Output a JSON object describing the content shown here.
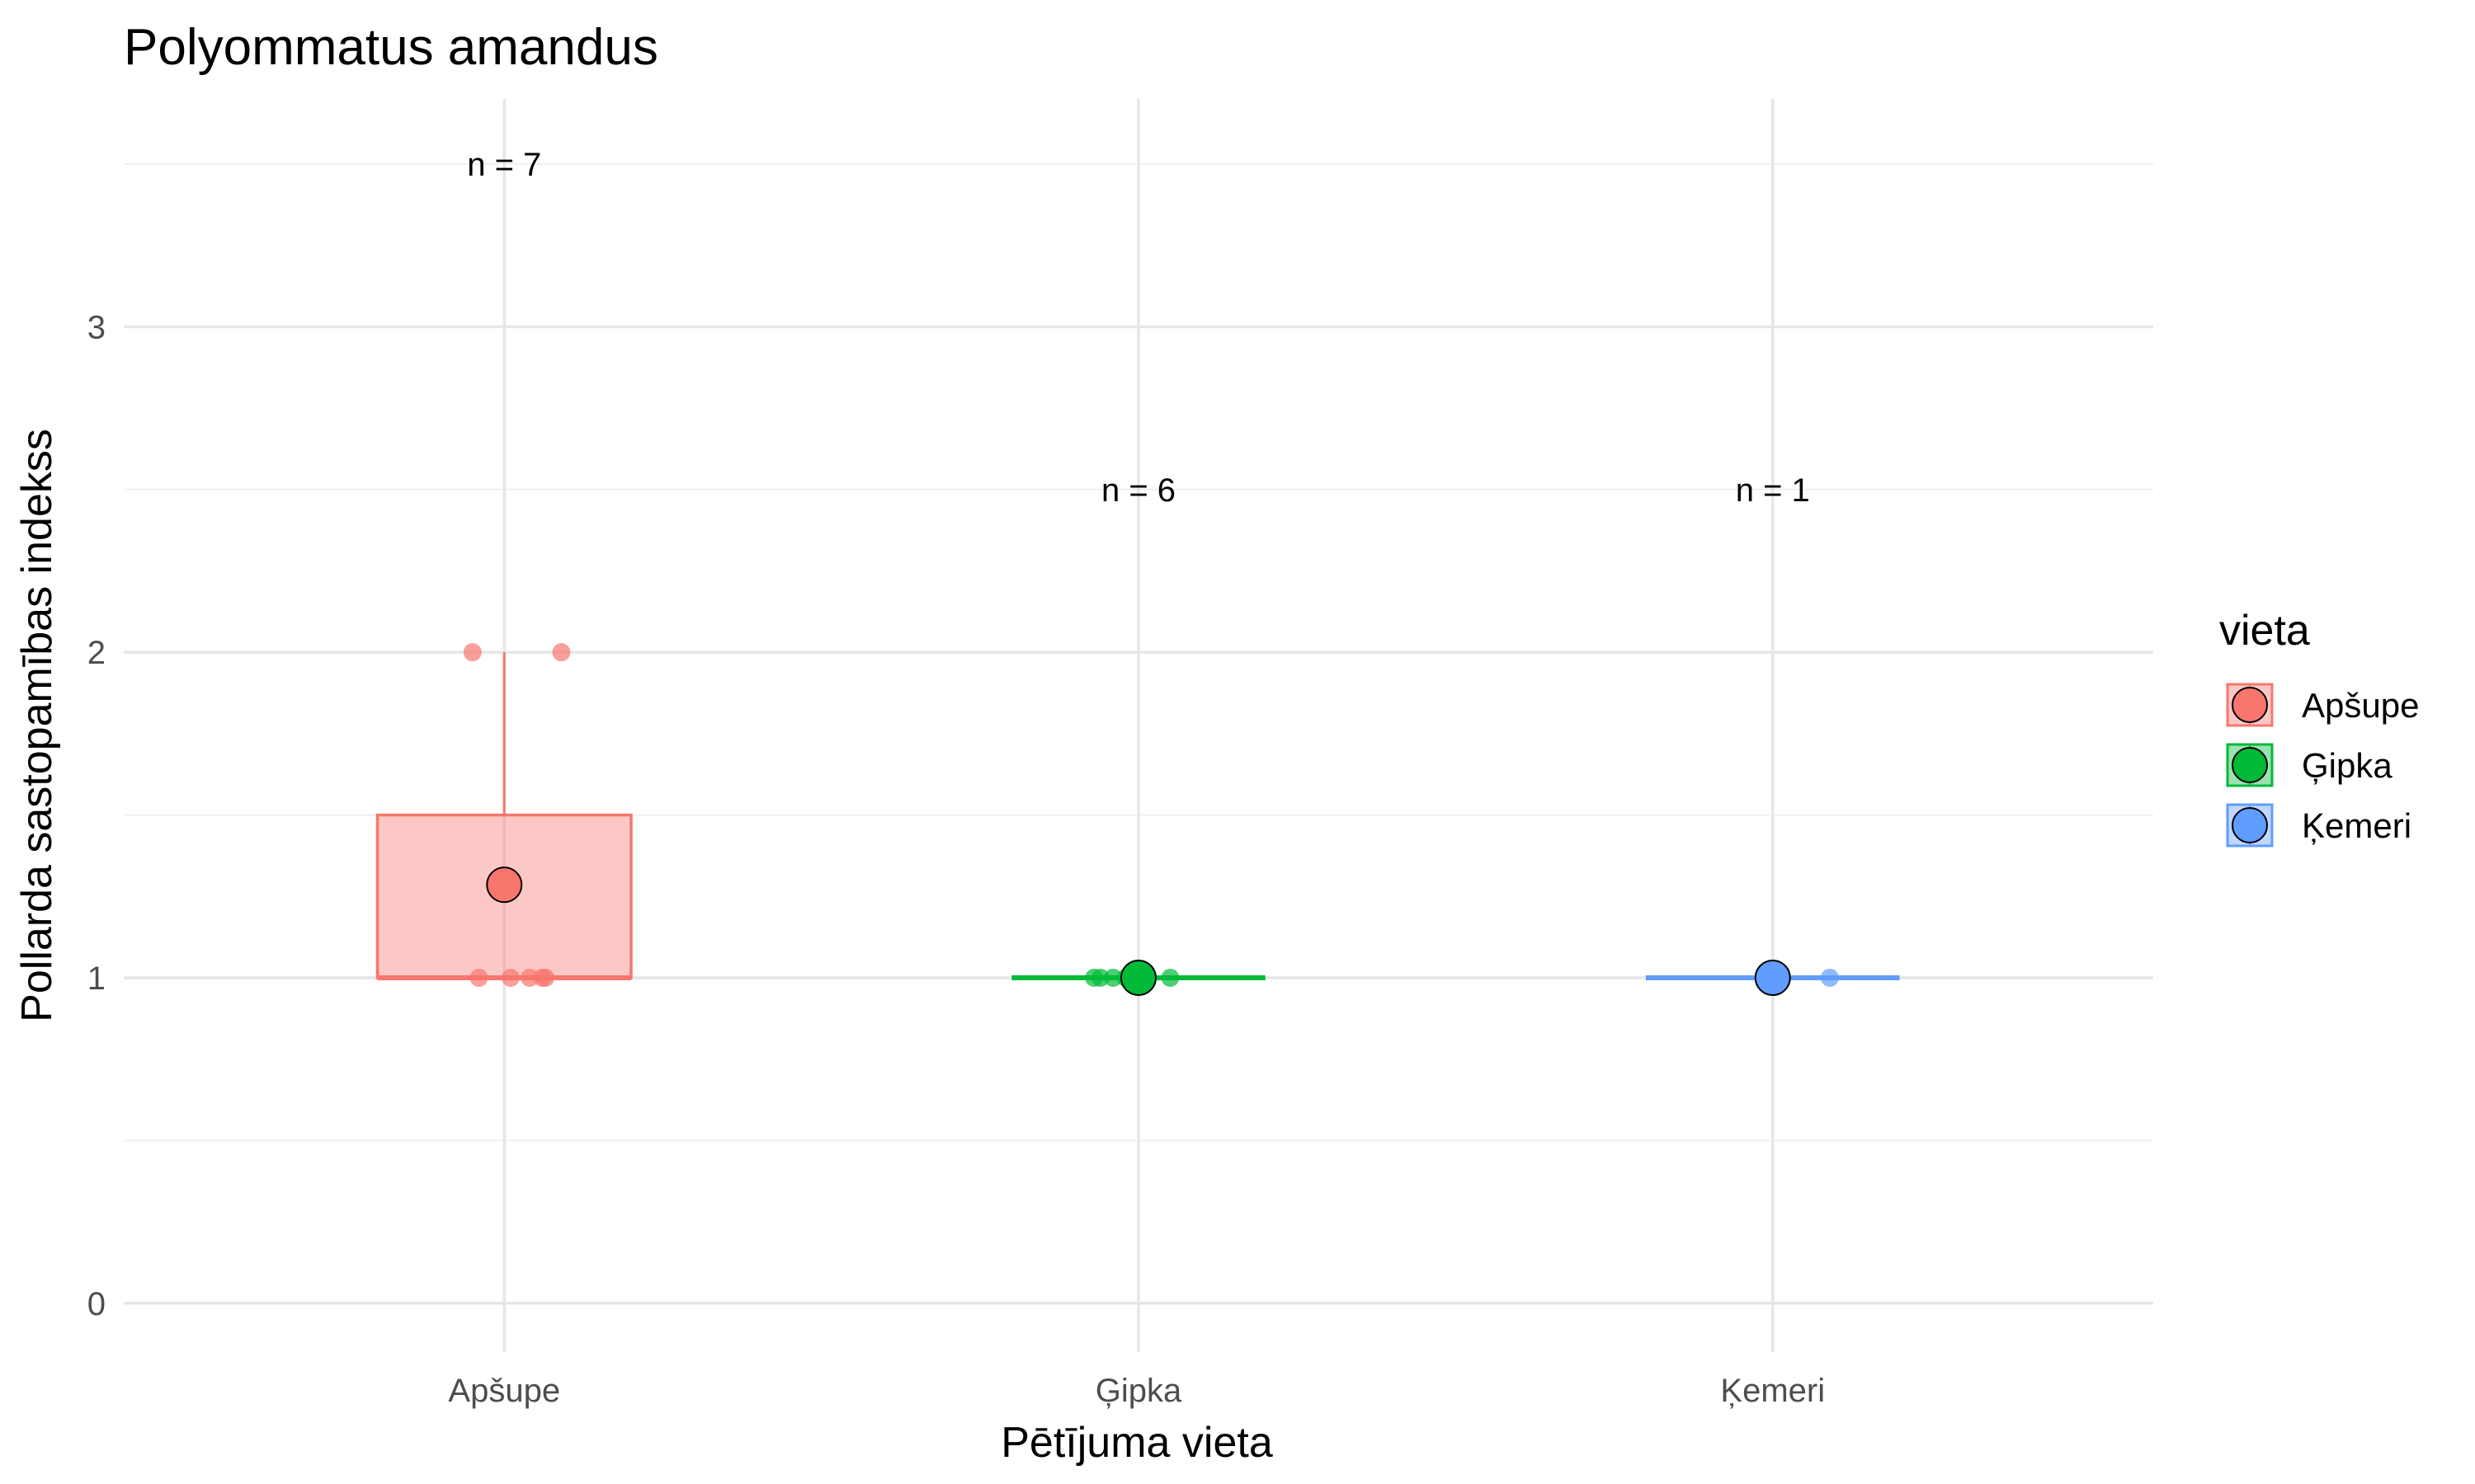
{
  "chart_data": {
    "type": "box",
    "title": "Polyommatus amandus",
    "xlabel": "Pētījuma vieta",
    "ylabel": "Pollarda sastopamības indekss",
    "ylim": [
      -0.15,
      3.7
    ],
    "yticks": [
      0,
      1,
      2,
      3
    ],
    "grid": true,
    "legend_position": "right",
    "legend_title": "vieta",
    "categories": [
      "Apšupe",
      "Ģipka",
      "Ķemeri"
    ],
    "colors": {
      "Apšupe": "#F8766D",
      "Ģipka": "#00BA38",
      "Ķemeri": "#619CFF"
    },
    "series": [
      {
        "category": "Apšupe",
        "n_label": "n = 7",
        "n_label_y": 3.5,
        "box": {
          "min": 1,
          "q1": 1,
          "median": 1,
          "q3": 1.5,
          "max": 2
        },
        "mean": 1.2857,
        "points": [
          {
            "jitter": -0.05,
            "y": 2
          },
          {
            "jitter": 0.09,
            "y": 2
          },
          {
            "jitter": -0.04,
            "y": 1
          },
          {
            "jitter": 0.01,
            "y": 1
          },
          {
            "jitter": 0.04,
            "y": 1
          },
          {
            "jitter": 0.06,
            "y": 1
          },
          {
            "jitter": 0.065,
            "y": 1
          }
        ]
      },
      {
        "category": "Ģipka",
        "n_label": "n = 6",
        "n_label_y": 2.5,
        "box": {
          "min": 1,
          "q1": 1,
          "median": 1,
          "q3": 1,
          "max": 1
        },
        "mean": 1,
        "points": [
          {
            "jitter": -0.07,
            "y": 1
          },
          {
            "jitter": -0.06,
            "y": 1
          },
          {
            "jitter": -0.04,
            "y": 1
          },
          {
            "jitter": -0.02,
            "y": 1
          },
          {
            "jitter": 0.0,
            "y": 1
          },
          {
            "jitter": 0.05,
            "y": 1
          }
        ]
      },
      {
        "category": "Ķemeri",
        "n_label": "n = 1",
        "n_label_y": 2.5,
        "box": {
          "min": 1,
          "q1": 1,
          "median": 1,
          "q3": 1,
          "max": 1
        },
        "mean": 1,
        "points": [
          {
            "jitter": 0.09,
            "y": 1
          }
        ]
      }
    ]
  }
}
